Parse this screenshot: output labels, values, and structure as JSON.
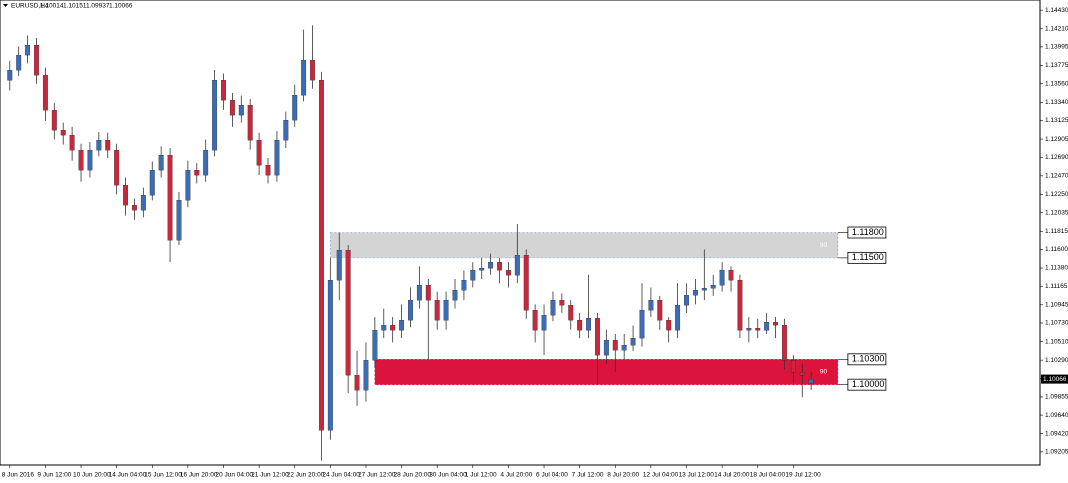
{
  "chart_data": {
    "type": "candlestick",
    "symbol": "EURUSD,H4",
    "up_color": "#3b6cb4",
    "down_color": "#c8283c",
    "wick_color": "#333333",
    "xlim": [
      -1.1,
      115.7
    ],
    "ylim": [
      1.0905,
      1.1455
    ],
    "xticks": [
      {
        "value": 0,
        "label": "8 Jun 2016"
      },
      {
        "value": 4,
        "label": "9 Jun 12:00"
      },
      {
        "value": 8,
        "label": "10 Jun 20:00"
      },
      {
        "value": 12,
        "label": "14 Jun 04:00"
      },
      {
        "value": 16,
        "label": "15 Jun 12:00"
      },
      {
        "value": 20,
        "label": "16 Jun 20:00"
      },
      {
        "value": 24,
        "label": "20 Jun 04:00"
      },
      {
        "value": 28,
        "label": "21 Jun 12:00"
      },
      {
        "value": 32,
        "label": "22 Jun 20:00"
      },
      {
        "value": 36,
        "label": "24 Jun 04:00"
      },
      {
        "value": 40,
        "label": "27 Jun 12:00"
      },
      {
        "value": 44,
        "label": "28 Jun 20:00"
      },
      {
        "value": 48,
        "label": "30 Jun 04:00"
      },
      {
        "value": 52,
        "label": "1 Jul 12:00"
      },
      {
        "value": 56,
        "label": "4 Jul 20:00"
      },
      {
        "value": 60,
        "label": "6 Jul 04:00"
      },
      {
        "value": 64,
        "label": "7 Jul 12:00"
      },
      {
        "value": 68,
        "label": "8 Jul 20:00"
      },
      {
        "value": 72,
        "label": "12 Jul 04:00"
      },
      {
        "value": 76,
        "label": "13 Jul 12:00"
      },
      {
        "value": 80,
        "label": "14 Jul 20:00"
      },
      {
        "value": 84,
        "label": "18 Jul 04:00"
      },
      {
        "value": 88,
        "label": "19 Jul 12:00"
      }
    ],
    "yticks": [
      {
        "value": 1.1443,
        "label": "1.14430"
      },
      {
        "value": 1.1421,
        "label": "1.14210"
      },
      1.13995,
      1.13775,
      {
        "value": 1.1356,
        "label": "1.13560"
      },
      {
        "value": 1.1334,
        "label": "1.13340"
      },
      1.13125,
      1.12905,
      {
        "value": 1.1269,
        "label": "1.12690"
      },
      {
        "value": 1.1247,
        "label": "1.12470"
      },
      {
        "value": 1.1225,
        "label": "1.12250"
      },
      1.12035,
      1.11815,
      {
        "value": 1.116,
        "label": "1.11600"
      },
      {
        "value": 1.1138,
        "label": "1.11380"
      },
      1.11165,
      1.10945,
      {
        "value": 1.1073,
        "label": "1.10730"
      },
      {
        "value": 1.1051,
        "label": "1.10510"
      },
      {
        "value": 1.1029,
        "label": "1.10290"
      },
      1.10075,
      1.09855,
      {
        "value": 1.0964,
        "label": "1.09640"
      },
      {
        "value": 1.0942,
        "label": "1.09420"
      },
      1.09205
    ],
    "open": [
      1.136,
      1.1372,
      1.13898,
      1.14016,
      1.13661,
      1.13247,
      1.1301,
      1.12951,
      1.12774,
      1.12537,
      1.12774,
      1.12892,
      1.12774,
      1.1236,
      1.12123,
      1.12064,
      1.12241,
      1.12537,
      1.12715,
      1.11709,
      1.12182,
      1.12537,
      1.12478,
      1.12774,
      1.13602,
      1.13365,
      1.13188,
      1.13306,
      1.12892,
      1.12596,
      1.12478,
      1.12892,
      1.13129,
      1.13424,
      1.13838,
      1.13602,
      1.09461,
      1.11236,
      1.11591,
      1.10112,
      1.09935,
      1.10289,
      1.10644,
      1.10704,
      1.10644,
      1.10763,
      1.10999,
      1.11177,
      1.10999,
      1.10763,
      1.10999,
      1.11118,
      1.11236,
      1.11354,
      1.11378,
      1.11449,
      1.11354,
      1.11295,
      1.11532,
      1.10881,
      1.10644,
      1.10822,
      1.10999,
      1.1094,
      1.10763,
      1.10644,
      1.10786,
      1.10349,
      1.10526,
      1.10408,
      1.10467,
      1.1055,
      1.10881,
      1.10999,
      1.10763,
      1.10644,
      1.1094,
      1.11058,
      1.11118,
      1.11141,
      1.11177,
      1.11354,
      1.11236,
      1.10644,
      1.10668,
      1.10644,
      1.10739,
      1.10704,
      1.10289,
      1.10148,
      1.10014
    ],
    "high": [
      1.1383,
      1.14,
      1.1413,
      1.141,
      1.1375,
      1.1333,
      1.131,
      1.1305,
      1.1285,
      1.1287,
      1.1299,
      1.1298,
      1.1285,
      1.1245,
      1.122,
      1.1233,
      1.1264,
      1.1282,
      1.128,
      1.1228,
      1.1265,
      1.1262,
      1.129,
      1.1372,
      1.1368,
      1.1345,
      1.1342,
      1.1338,
      1.1298,
      1.1268,
      1.13,
      1.1323,
      1.1355,
      1.142,
      1.1425,
      1.137,
      1.115,
      1.118,
      1.1165,
      1.104,
      1.105,
      1.108,
      1.109,
      1.108,
      1.1095,
      1.1115,
      1.114,
      1.1125,
      1.111,
      1.111,
      1.1125,
      1.1135,
      1.1145,
      1.115,
      1.1155,
      1.115,
      1.1145,
      1.119,
      1.116,
      1.1095,
      1.1095,
      1.111,
      1.1108,
      1.11,
      1.1085,
      1.113,
      1.1085,
      1.1065,
      1.106,
      1.106,
      1.107,
      1.112,
      1.1115,
      1.1105,
      1.108,
      1.112,
      1.112,
      1.1125,
      1.116,
      1.113,
      1.1145,
      1.114,
      1.113,
      1.108,
      1.1078,
      1.1085,
      1.108,
      1.1078,
      1.1035,
      1.1025,
      1.10151
    ],
    "low": [
      1.1348,
      1.1365,
      1.138,
      1.1356,
      1.1312,
      1.129,
      1.1284,
      1.1265,
      1.124,
      1.1245,
      1.127,
      1.1268,
      1.1225,
      1.12,
      1.1195,
      1.1198,
      1.1218,
      1.1245,
      1.1145,
      1.1165,
      1.121,
      1.1238,
      1.124,
      1.127,
      1.1325,
      1.1305,
      1.131,
      1.1278,
      1.1248,
      1.1238,
      1.124,
      1.128,
      1.1305,
      1.1335,
      1.135,
      1.091,
      1.0935,
      1.11,
      1.099,
      1.0975,
      1.098,
      1.102,
      1.1055,
      1.105,
      1.1055,
      1.1068,
      1.109,
      1.103,
      1.1065,
      1.1065,
      1.109,
      1.11,
      1.1115,
      1.1125,
      1.113,
      1.112,
      1.1115,
      1.112,
      1.1078,
      1.105,
      1.1035,
      1.1075,
      1.1085,
      1.1065,
      1.1055,
      1.1055,
      1.1,
      1.1025,
      1.1015,
      1.103,
      1.104,
      1.1045,
      1.108,
      1.1065,
      1.105,
      1.1055,
      1.1085,
      1.1095,
      1.11,
      1.1105,
      1.111,
      1.111,
      1.1055,
      1.105,
      1.1055,
      1.106,
      1.1055,
      1.1018,
      1.1002,
      1.0985,
      1.09937
    ],
    "close": [
      1.1372,
      1.13898,
      1.14016,
      1.13661,
      1.13247,
      1.1301,
      1.12951,
      1.12774,
      1.12537,
      1.12774,
      1.12892,
      1.12774,
      1.1236,
      1.12123,
      1.12064,
      1.12241,
      1.12537,
      1.12715,
      1.11709,
      1.12182,
      1.12537,
      1.12478,
      1.12774,
      1.13602,
      1.13365,
      1.13188,
      1.13306,
      1.12892,
      1.12596,
      1.12478,
      1.12892,
      1.13129,
      1.13424,
      1.13838,
      1.13602,
      1.09461,
      1.11236,
      1.11591,
      1.10112,
      1.09935,
      1.10289,
      1.10644,
      1.10704,
      1.10644,
      1.10763,
      1.10999,
      1.11177,
      1.10999,
      1.10763,
      1.10999,
      1.11118,
      1.11236,
      1.11354,
      1.11378,
      1.11449,
      1.11354,
      1.11295,
      1.11532,
      1.10881,
      1.10644,
      1.10822,
      1.10999,
      1.1094,
      1.10763,
      1.10644,
      1.10786,
      1.10349,
      1.10526,
      1.10408,
      1.10467,
      1.1055,
      1.10881,
      1.10999,
      1.10763,
      1.10644,
      1.1094,
      1.11058,
      1.11118,
      1.11141,
      1.11177,
      1.11354,
      1.11236,
      1.10644,
      1.10668,
      1.10644,
      1.10739,
      1.10704,
      1.10289,
      1.10148,
      1.10112,
      1.10066
    ],
    "zones": [
      {
        "start": 36,
        "end": 93,
        "top": {
          "value": 1.118,
          "label": "1.11800"
        },
        "bottom": {
          "value": 1.115,
          "label": "1.11500"
        },
        "color": "#d4d4d4",
        "border": "#7e9fd6",
        "text": "90"
      },
      {
        "start": 41,
        "end": 93,
        "top": {
          "value": 1.103,
          "label": "1.10300"
        },
        "bottom": {
          "value": 1.1,
          "label": "1.10000"
        },
        "color": "#dc143c",
        "border": "#dc143c",
        "text": "90"
      }
    ]
  }
}
